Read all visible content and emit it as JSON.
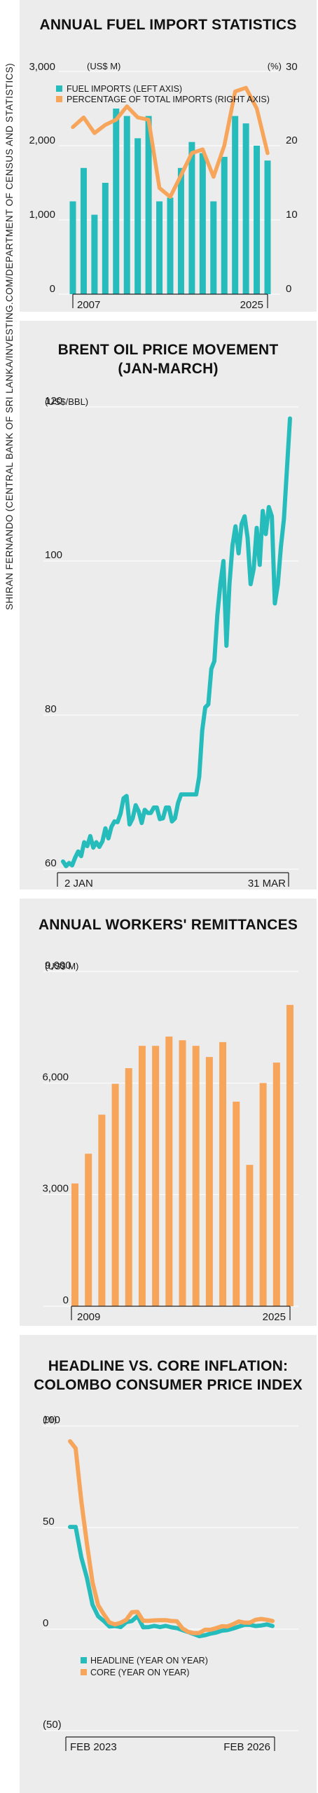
{
  "credit": "SHIRAN FERNANDO (CENTRAL BANK OF SRI LANKA/INVESTING.COM/DEPARTMENT OF CENSUS AND STATISTICS)",
  "colors": {
    "teal": "#26bcbc",
    "orange": "#f6a55a",
    "panel": "#ececec",
    "axis": "#222222"
  },
  "chart_data": [
    {
      "type": "bar",
      "title": "ANNUAL FUEL IMPORT STATISTICS",
      "left_unit": "(US$ M)",
      "right_unit": "(%)",
      "x": [
        2007,
        2008,
        2009,
        2010,
        2011,
        2012,
        2013,
        2014,
        2015,
        2016,
        2017,
        2018,
        2019,
        2020,
        2021,
        2022,
        2023,
        2024,
        2025
      ],
      "x_ticks": [
        "2007",
        "2025"
      ],
      "y_left": {
        "ticks": [
          "0",
          "1,000",
          "2,000",
          "3,000"
        ],
        "range": [
          0,
          3000
        ]
      },
      "y_right": {
        "ticks": [
          "0",
          "10",
          "20",
          "30"
        ],
        "range": [
          0,
          30
        ]
      },
      "series": [
        {
          "name": "FUEL IMPORTS (LEFT AXIS)",
          "kind": "bar",
          "values": [
            1250,
            1700,
            1070,
            1500,
            2500,
            2400,
            2100,
            2400,
            1250,
            1300,
            1700,
            2050,
            1900,
            1250,
            1850,
            2400,
            2300,
            2000,
            1800
          ]
        },
        {
          "name": "PERCENTAGE OF TOTAL IMPORTS (RIGHT AXIS)",
          "kind": "line",
          "values": [
            22.5,
            23.8,
            21.7,
            22.8,
            23.5,
            25.3,
            23.8,
            23.5,
            14.3,
            13.1,
            16.0,
            19.0,
            19.5,
            15.8,
            20.0,
            27.3,
            27.8,
            25.0,
            19.0
          ]
        }
      ]
    },
    {
      "type": "line",
      "title": [
        "BRENT OIL PRICE MOVEMENT",
        "(JAN-MARCH)"
      ],
      "unit": "(US$/BBL)",
      "x_ticks": [
        "2 JAN",
        "31 MAR"
      ],
      "y": {
        "ticks": [
          "60",
          "80",
          "100",
          "120"
        ],
        "range": [
          60,
          120
        ]
      },
      "series": [
        {
          "name": "",
          "values": [
            61,
            60.4,
            60.8,
            60.5,
            61.5,
            62.3,
            61.7,
            63.5,
            63.0,
            64.3,
            62.8,
            63.5,
            62.9,
            63.6,
            65.3,
            64.0,
            65.5,
            66.2,
            66.1,
            67.2,
            69.2,
            69.5,
            65.8,
            66.6,
            68.3,
            67.5,
            66.0,
            67.7,
            67.3,
            67.3,
            68.0,
            68.0,
            66.5,
            66.6,
            68.0,
            68.0,
            66.2,
            66.6,
            68.6,
            69.7,
            69.7,
            69.7,
            69.7,
            69.7,
            69.7,
            72.0,
            78.0,
            81.0,
            81.4,
            86.0,
            87.0,
            93.0,
            97.0,
            100.0,
            89.0,
            97.0,
            102.0,
            104.5,
            101.0,
            104.8,
            105.8,
            103.0,
            97.0,
            99.0,
            104.3,
            99.5,
            106.5,
            103.5,
            107.0,
            105.8,
            94.5,
            97.0,
            101.8,
            105.5,
            112.0,
            118.5
          ]
        }
      ]
    },
    {
      "type": "bar",
      "title": "ANNUAL WORKERS' REMITTANCES",
      "unit": "(US$ M)",
      "x": [
        2009,
        2010,
        2011,
        2012,
        2013,
        2014,
        2015,
        2016,
        2017,
        2018,
        2019,
        2020,
        2021,
        2022,
        2023,
        2024,
        2025
      ],
      "x_ticks": [
        "2009",
        "2025"
      ],
      "y": {
        "ticks": [
          "0",
          "3,000",
          "6,000",
          "9,000"
        ],
        "range": [
          0,
          9000
        ]
      },
      "series": [
        {
          "name": "",
          "values": [
            3300,
            4100,
            5150,
            5980,
            6400,
            7000,
            7000,
            7250,
            7150,
            7000,
            6700,
            7100,
            5500,
            3800,
            6000,
            6550,
            8100
          ]
        }
      ]
    },
    {
      "type": "line",
      "title": [
        "HEADLINE VS. CORE INFLATION:",
        "COLOMBO CONSUMER PRICE INDEX"
      ],
      "unit": "(%)",
      "x_ticks": [
        "FEB 2023",
        "FEB 2026"
      ],
      "y": {
        "ticks": [
          "(50)",
          "0",
          "50",
          "100"
        ],
        "range": [
          -50,
          100
        ]
      },
      "series": [
        {
          "name": "HEADLINE (YEAR ON YEAR)",
          "values": [
            50.3,
            50.3,
            35.3,
            25.2,
            12.0,
            6.3,
            4.0,
            1.3,
            1.5,
            1.0,
            3.4,
            4.0,
            6.4,
            0.9,
            1.0,
            1.6,
            1.0,
            1.6,
            0.9,
            0.5,
            -0.5,
            -1.4,
            -2.4,
            -3.5,
            -3.0,
            -2.2,
            -1.7,
            -0.8,
            -0.5,
            0.3,
            1.2,
            2.1,
            2.1,
            1.5,
            1.8,
            2.3,
            1.5
          ]
        },
        {
          "name": "CORE (YEAR ON YEAR)",
          "values": [
            92.5,
            89.0,
            63.0,
            42.0,
            23.0,
            11.8,
            7.3,
            3.3,
            2.3,
            3.1,
            4.6,
            8.3,
            8.5,
            4.1,
            4.1,
            4.3,
            4.4,
            4.4,
            4.0,
            3.9,
            0.3,
            -1.3,
            -2.0,
            -1.9,
            -0.3,
            -0.3,
            0.5,
            1.4,
            1.3,
            2.4,
            3.8,
            3.2,
            3.2,
            4.6,
            5.0,
            4.6,
            4.0
          ]
        }
      ]
    }
  ]
}
